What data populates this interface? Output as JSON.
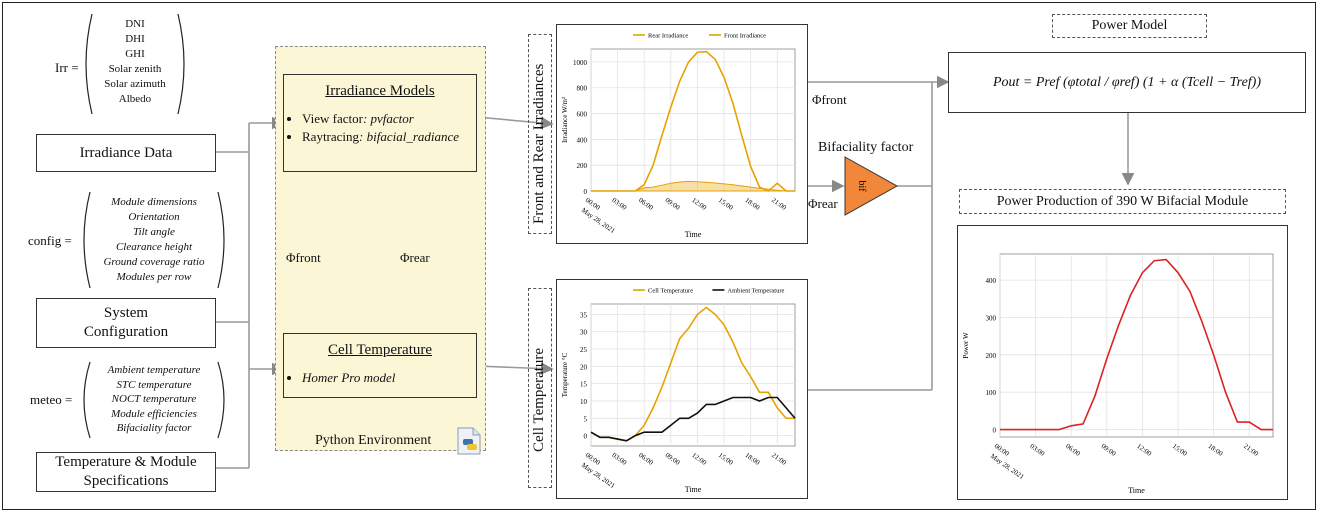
{
  "inputs": {
    "irr_label": "Irr =",
    "irr_vector": [
      "DNI",
      "DHI",
      "GHI",
      "Solar zenith",
      "Solar azimuth",
      "Albedo"
    ],
    "irradiance_data": "Irradiance Data",
    "config_label": "config =",
    "config_vector": [
      "Module dimensions",
      "Orientation",
      "Tilt angle",
      "Clearance height",
      "Ground coverage ratio",
      "Modules per row"
    ],
    "system_configuration": "System Configuration",
    "meteo_label": "meteo =",
    "meteo_vector": [
      "Ambient temperature",
      "STC temperature",
      "NOCT temperature",
      "Module efficiencies",
      "Bifaciality factor"
    ],
    "temp_module_specs": "Temperature & Module Specifications"
  },
  "python_env": {
    "label": "Python Environment",
    "irradiance_models": {
      "title": "Irradiance Models",
      "items": [
        {
          "name": "View factor",
          "tool": ": pvfactor"
        },
        {
          "name": "Raytracing",
          "tool": ": bifacial_radiance"
        }
      ]
    },
    "cell_temperature": {
      "title": "Cell Temperature",
      "items": [
        "Homer Pro model"
      ]
    },
    "phi_front": "Φfront",
    "phi_rear": "Φrear"
  },
  "irradiance_chart_title": "Front and Rear Irradiances",
  "temperature_chart_title": "Cell Temperature",
  "bifaciality": {
    "label": "Bifaciality factor",
    "triangle_text": "bif",
    "color": "#f0873a",
    "phi_front": "Φfront",
    "phi_rear": "Φrear"
  },
  "power_model": {
    "title": "Power Model",
    "formula": "Pout = Pref (φtotal / φref) (1 + α (Tcell − Tref))"
  },
  "power_production_title": "Power Production of 390 W Bifacial Module",
  "chart_data": [
    {
      "type": "line",
      "ylabel": "Irradiance W/m²",
      "xlabel": "Time",
      "x_ticks": [
        "00:00",
        "03:00",
        "06:00",
        "09:00",
        "12:00",
        "15:00",
        "18:00",
        "21:00"
      ],
      "x_sublabel": "May 28, 2021",
      "y_ticks": [
        0,
        200,
        400,
        600,
        800,
        1000
      ],
      "ylim": [
        0,
        1100
      ],
      "x": [
        0,
        1,
        2,
        3,
        4,
        5,
        6,
        7,
        8,
        9,
        10,
        11,
        12,
        13,
        14,
        15,
        16,
        17,
        18,
        19,
        20,
        21,
        22,
        23
      ],
      "series": [
        {
          "name": "Rear Irradiance",
          "color": "#e8a200",
          "area": true,
          "values": [
            0,
            0,
            0,
            0,
            0,
            0,
            25,
            30,
            45,
            60,
            70,
            75,
            72,
            68,
            62,
            55,
            48,
            40,
            30,
            20,
            15,
            5,
            0,
            0
          ]
        },
        {
          "name": "Front Irradiance",
          "color": "#e8a200",
          "values": [
            0,
            0,
            0,
            0,
            0,
            0,
            50,
            200,
            430,
            650,
            850,
            1000,
            1075,
            1080,
            1020,
            880,
            680,
            430,
            190,
            30,
            0,
            60,
            0,
            0
          ]
        }
      ],
      "legend": "top"
    },
    {
      "type": "line",
      "ylabel": "Temperature °C",
      "xlabel": "Time",
      "x_ticks": [
        "00:00",
        "03:00",
        "06:00",
        "09:00",
        "12:00",
        "15:00",
        "18:00",
        "21:00"
      ],
      "x_sublabel": "May 28, 2021",
      "y_ticks": [
        0,
        5,
        10,
        15,
        20,
        25,
        30,
        35
      ],
      "ylim": [
        -3,
        38
      ],
      "x": [
        0,
        1,
        2,
        3,
        4,
        5,
        6,
        7,
        8,
        9,
        10,
        11,
        12,
        13,
        14,
        15,
        16,
        17,
        18,
        19,
        20,
        21,
        22,
        23
      ],
      "series": [
        {
          "name": "Cell Temperature",
          "color": "#e8a200",
          "values": [
            1,
            -0.5,
            -0.5,
            -1,
            -1.5,
            0,
            3,
            8,
            14,
            21,
            28,
            31,
            35,
            37,
            35,
            32,
            27,
            21,
            17,
            12.5,
            12.5,
            8,
            5,
            5
          ]
        },
        {
          "name": "Ambient Temperature",
          "color": "#111111",
          "values": [
            1,
            -0.5,
            -0.5,
            -1,
            -1.5,
            0,
            1,
            1,
            1,
            3,
            5,
            5,
            6.5,
            9,
            9,
            10,
            11,
            11,
            11,
            10,
            11,
            11,
            8,
            5
          ]
        }
      ],
      "legend": "top"
    },
    {
      "type": "line",
      "ylabel": "Power W",
      "xlabel": "Time",
      "x_ticks": [
        "00:00",
        "03:00",
        "06:00",
        "09:00",
        "12:00",
        "15:00",
        "18:00",
        "21:00"
      ],
      "x_sublabel": "May 28, 2021",
      "y_ticks": [
        0,
        100,
        200,
        300,
        400
      ],
      "ylim": [
        -20,
        470
      ],
      "x": [
        0,
        1,
        2,
        3,
        4,
        5,
        6,
        7,
        8,
        9,
        10,
        11,
        12,
        13,
        14,
        15,
        16,
        17,
        18,
        19,
        20,
        21,
        22,
        23
      ],
      "series": [
        {
          "name": "Power",
          "color": "#dd2222",
          "values": [
            0,
            0,
            0,
            0,
            0,
            0,
            10,
            15,
            90,
            190,
            280,
            360,
            420,
            452,
            455,
            420,
            370,
            290,
            200,
            100,
            20,
            20,
            0,
            0
          ]
        }
      ]
    }
  ]
}
